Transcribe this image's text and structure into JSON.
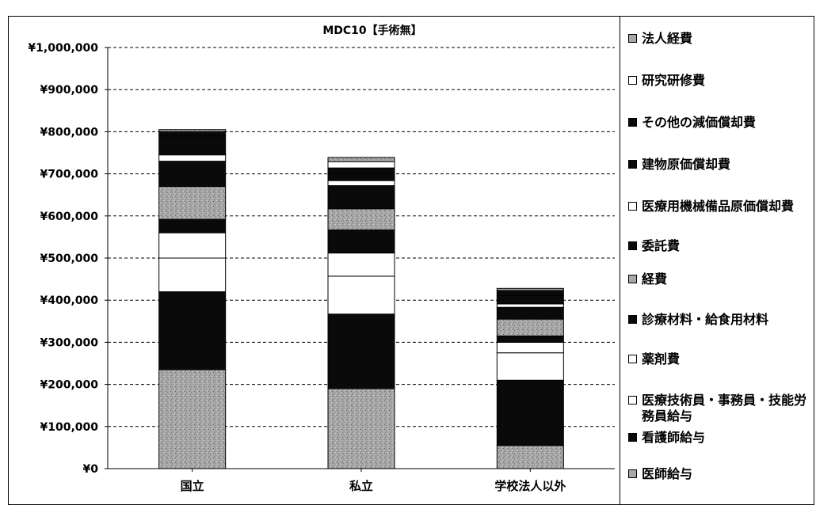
{
  "chart_data": {
    "type": "bar",
    "stacked": true,
    "title": "MDC10【手術無】",
    "xlabel": "",
    "ylabel": "",
    "ylim": [
      0,
      1000000
    ],
    "yticks": [
      "¥0",
      "¥100,000",
      "¥200,000",
      "¥300,000",
      "¥400,000",
      "¥500,000",
      "¥600,000",
      "¥700,000",
      "¥800,000",
      "¥900,000",
      "¥1,000,000"
    ],
    "categories": [
      "国立",
      "私立",
      "学校法人以外"
    ],
    "grid": "horizontal dashed",
    "legend_position": "right",
    "series": [
      {
        "name": "医師給与",
        "values": [
          235000,
          190000,
          55000
        ],
        "color": "#a8a8a8",
        "pattern": "speckle"
      },
      {
        "name": "看護師給与",
        "values": [
          185000,
          177000,
          155000
        ],
        "color": "#0a0a0a"
      },
      {
        "name": "医療技術員・事務員・技能労務員給与",
        "values": [
          80000,
          90000,
          65000
        ],
        "color": "#ffffff"
      },
      {
        "name": "薬剤費",
        "values": [
          60000,
          55000,
          25000
        ],
        "color": "#ffffff"
      },
      {
        "name": "診療材料・給食用材料",
        "values": [
          32000,
          55000,
          15000
        ],
        "color": "#0a0a0a"
      },
      {
        "name": "経費",
        "values": [
          78000,
          50000,
          40000
        ],
        "color": "#a8a8a8",
        "pattern": "speckle"
      },
      {
        "name": "委託費",
        "values": [
          60000,
          55000,
          28000
        ],
        "color": "#0a0a0a"
      },
      {
        "name": "医療用機械備品原価償却費",
        "values": [
          15000,
          12000,
          8000
        ],
        "color": "#ffffff"
      },
      {
        "name": "建物原価償却費",
        "values": [
          45000,
          18000,
          20000
        ],
        "color": "#0a0a0a"
      },
      {
        "name": "その他の減価償却費",
        "values": [
          10000,
          12000,
          12000
        ],
        "color": "#0a0a0a"
      },
      {
        "name": "研究研修費",
        "values": [
          0,
          15000,
          0
        ],
        "color": "#ffffff"
      },
      {
        "name": "法人経費",
        "values": [
          5000,
          10000,
          5000
        ],
        "color": "#a8a8a8",
        "pattern": "speckle"
      }
    ]
  },
  "legend": {
    "items": [
      {
        "label": "法人経費",
        "color": "#a8a8a8"
      },
      {
        "label": "研究研修費",
        "color": "#ffffff"
      },
      {
        "label": "その他の減価償却費",
        "color": "#0a0a0a"
      },
      {
        "label": "建物原価償却費",
        "color": "#0a0a0a"
      },
      {
        "label": "医療用機械備品原価償却費",
        "color": "#ffffff"
      },
      {
        "label": "委託費",
        "color": "#0a0a0a"
      },
      {
        "label": "経費",
        "color": "#a8a8a8"
      },
      {
        "label": "診療材料・給食用材料",
        "color": "#0a0a0a"
      },
      {
        "label": "薬剤費",
        "color": "#ffffff"
      },
      {
        "label": "医療技術員・事務員・技能労務員給与",
        "color": "#ffffff"
      },
      {
        "label": "看護師給与",
        "color": "#0a0a0a"
      },
      {
        "label": "医師給与",
        "color": "#a8a8a8"
      }
    ]
  }
}
